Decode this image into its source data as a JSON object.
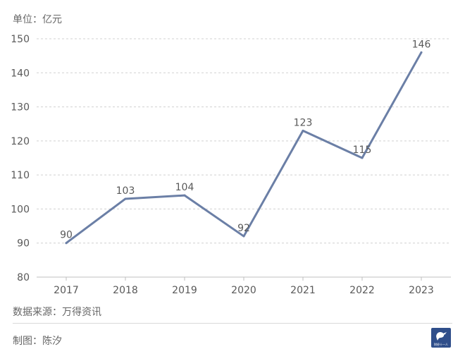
{
  "unit_label": "单位：亿元",
  "source_label": "数据来源：万得资讯",
  "credit_label": "制图：陈汐",
  "logo": {
    "icon": "brand-logo-icon",
    "text": "财经十一人"
  },
  "colors": {
    "line": "#6b7fa6",
    "grid": "#d0d0d0",
    "axis": "#bfbfbf",
    "text": "#595959",
    "logo_bg": "#2f4e8a"
  },
  "chart_data": {
    "type": "line",
    "title": "",
    "xlabel": "",
    "ylabel": "",
    "categories": [
      "2017",
      "2018",
      "2019",
      "2020",
      "2021",
      "2022",
      "2023"
    ],
    "series": [
      {
        "values": [
          90,
          103,
          104,
          92,
          123,
          115,
          146
        ]
      }
    ],
    "data_labels": [
      "90",
      "103",
      "104",
      "92",
      "123",
      "115",
      "146"
    ],
    "ylim": [
      80,
      150
    ],
    "yticks": [
      80,
      90,
      100,
      110,
      120,
      130,
      140,
      150
    ],
    "grid": true,
    "legend": "none"
  }
}
